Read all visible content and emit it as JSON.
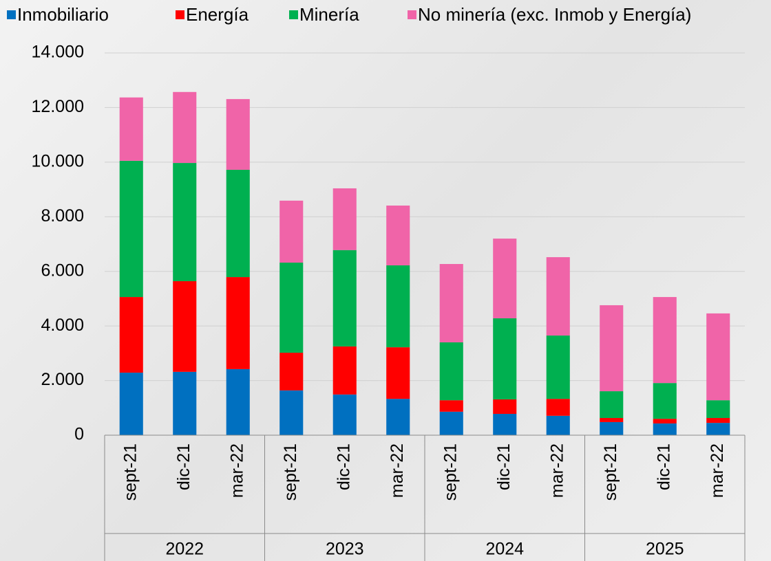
{
  "chart_data": {
    "type": "stacked-bar",
    "categories": [
      "sept-21",
      "dic-21",
      "mar-22",
      "sept-21",
      "dic-21",
      "mar-22",
      "sept-21",
      "dic-21",
      "mar-22",
      "sept-21",
      "dic-21",
      "mar-22"
    ],
    "groups": [
      "2022",
      "2023",
      "2024",
      "2025"
    ],
    "series": [
      {
        "name": "Inmobiliario",
        "color": "#0070c0",
        "values": [
          2290,
          2320,
          2420,
          1640,
          1490,
          1330,
          860,
          780,
          710,
          480,
          430,
          450
        ]
      },
      {
        "name": "Energía",
        "color": "#ff0000",
        "values": [
          2770,
          3320,
          3370,
          1380,
          1760,
          1890,
          420,
          530,
          620,
          150,
          170,
          180
        ]
      },
      {
        "name": "Minería",
        "color": "#00b050",
        "values": [
          4990,
          4330,
          3930,
          3300,
          3530,
          3000,
          2120,
          2970,
          2320,
          980,
          1310,
          650
        ]
      },
      {
        "name": "No minería (exc. Inmob y Energía)",
        "color": "#f064a8",
        "values": [
          2320,
          2600,
          2590,
          2270,
          2260,
          2190,
          2870,
          2920,
          2870,
          3150,
          3150,
          3180
        ]
      }
    ],
    "ylim": [
      0,
      14000
    ],
    "yticks": [
      0,
      {
        "value": 2000,
        "label": "2.000"
      },
      {
        "value": 4000,
        "label": "4.000"
      },
      {
        "value": 6000,
        "label": "6.000"
      },
      {
        "value": 8000,
        "label": "8.000"
      },
      {
        "value": 10000,
        "label": "10.000"
      },
      {
        "value": 12000,
        "label": "12.000"
      },
      {
        "value": 14000,
        "label": "14.000"
      }
    ],
    "grid": true
  }
}
